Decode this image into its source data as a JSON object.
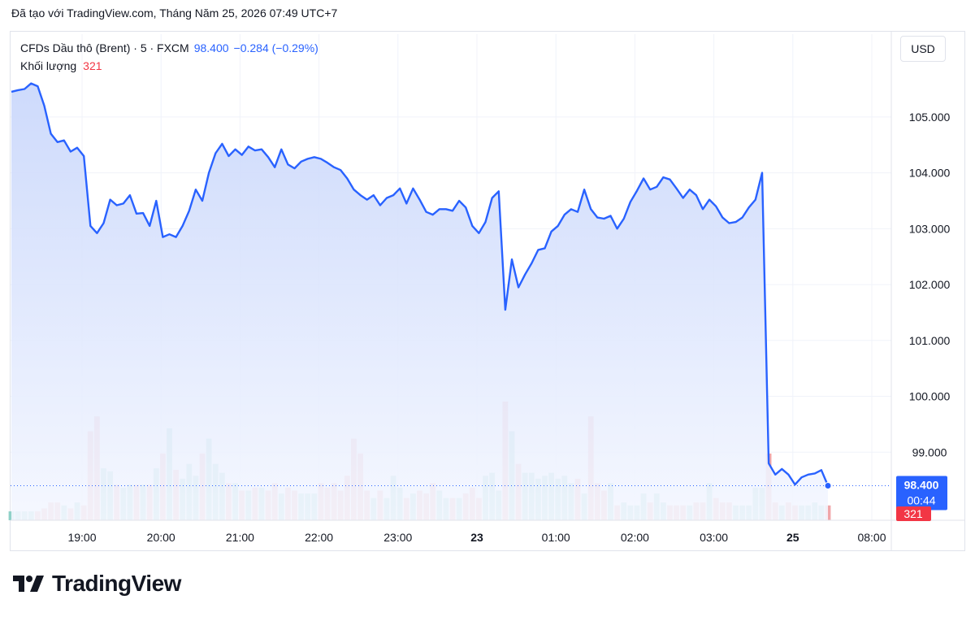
{
  "header": {
    "created_with": "Đã tạo với TradingView.com, Tháng Năm 25, 2026 07:49 UTC+7"
  },
  "legend": {
    "symbol": "CFDs Dầu thô (Brent) · 5 · FXCM",
    "price": "98.400",
    "change": "−0.284 (−0.29%)",
    "volume_label": "Khối lượng",
    "volume_value": "321"
  },
  "currency_button": "USD",
  "brand": {
    "name": "TradingView"
  },
  "colors": {
    "line": "#2962ff",
    "area_top": "#c8d6fb",
    "area_bottom": "#f4f7ff",
    "vol_up": "#8fd1c8",
    "vol_down": "#f0a5a8",
    "last_price_bg": "#2962ff",
    "volume_badge_bg": "#f23645"
  },
  "chart_data": {
    "type": "line",
    "y_axis": {
      "min": 98.0,
      "max": 105.9,
      "ticks": [
        "105.000",
        "104.000",
        "103.000",
        "102.000",
        "101.000",
        "100.000",
        "99.000"
      ]
    },
    "x_ticks": [
      "19:00",
      "20:00",
      "21:00",
      "22:00",
      "23:00",
      "23",
      "01:00",
      "02:00",
      "03:00",
      "25",
      "08:00"
    ],
    "x_ticks_bold": [
      "23",
      "25"
    ],
    "last_price_label": "98.400",
    "countdown_label": "00:44",
    "volume_badge": "321",
    "series": [
      {
        "values": [
          105.45,
          105.48,
          105.5,
          105.6,
          105.55,
          105.2,
          104.7,
          104.55,
          104.58,
          104.38,
          104.45,
          104.3,
          103.05,
          102.92,
          103.1,
          103.52,
          103.42,
          103.45,
          103.6,
          103.27,
          103.28,
          103.05,
          103.5,
          102.85,
          102.9,
          102.85,
          103.05,
          103.32,
          103.7,
          103.5,
          104.0,
          104.35,
          104.52,
          104.3,
          104.42,
          104.32,
          104.47,
          104.4,
          104.42,
          104.28,
          104.1,
          104.42,
          104.15,
          104.08,
          104.2,
          104.25,
          104.28,
          104.25,
          104.18,
          104.1,
          104.05,
          103.9,
          103.7,
          103.6,
          103.52,
          103.6,
          103.42,
          103.55,
          103.6,
          103.72,
          103.45,
          103.72,
          103.52,
          103.3,
          103.25,
          103.35,
          103.35,
          103.32,
          103.5,
          103.38,
          103.05,
          102.92,
          103.12,
          103.55,
          103.67,
          101.55,
          102.45,
          101.95,
          102.18,
          102.38,
          102.62,
          102.65,
          102.95,
          103.05,
          103.25,
          103.35,
          103.3,
          103.7,
          103.35,
          103.2,
          103.18,
          103.23,
          103.0,
          103.18,
          103.48,
          103.68,
          103.9,
          103.7,
          103.75,
          103.92,
          103.88,
          103.72,
          103.55,
          103.7,
          103.6,
          103.35,
          103.52,
          103.4,
          103.2,
          103.1,
          103.12,
          103.2,
          103.38,
          103.52,
          104.0,
          98.8,
          98.6,
          98.7,
          98.6,
          98.42,
          98.55,
          98.6,
          98.62,
          98.68,
          98.4
        ],
        "volume": [
          6,
          6,
          6,
          6,
          6,
          8,
          12,
          12,
          10,
          8,
          12,
          10,
          60,
          70,
          35,
          33,
          24,
          22,
          24,
          24,
          24,
          24,
          35,
          45,
          62,
          34,
          28,
          38,
          30,
          45,
          55,
          38,
          32,
          25,
          25,
          20,
          20,
          22,
          22,
          20,
          25,
          18,
          22,
          20,
          18,
          18,
          18,
          25,
          22,
          25,
          20,
          30,
          55,
          45,
          20,
          15,
          20,
          15,
          30,
          22,
          15,
          18,
          20,
          18,
          25,
          20,
          15,
          15,
          15,
          18,
          22,
          15,
          30,
          32,
          20,
          80,
          60,
          38,
          32,
          32,
          28,
          30,
          32,
          28,
          30,
          25,
          28,
          18,
          70,
          25,
          20,
          25,
          10,
          12,
          10,
          10,
          18,
          12,
          18,
          12,
          10,
          10,
          10,
          10,
          12,
          12,
          25,
          15,
          12,
          12,
          10,
          10,
          10,
          22,
          22,
          45,
          12,
          10,
          12,
          10,
          10,
          10,
          12,
          10,
          10
        ]
      }
    ]
  }
}
